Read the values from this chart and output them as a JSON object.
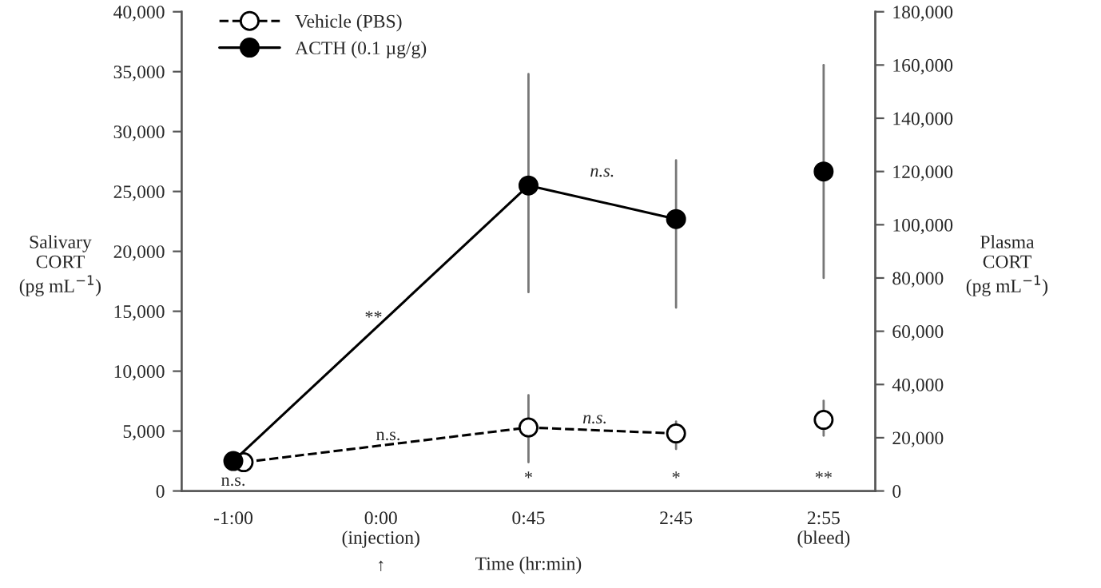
{
  "chart_data": {
    "type": "line",
    "xlabel": "Time (hr:min)",
    "ylabel": "Salivary\nCORT\n(pg mL$^{−1}$)",
    "y2label": "Plasma\nCORT\n(pg mL$^{−1}$)",
    "categories": [
      "-1:00",
      "0:00\n(injection)",
      "0:45",
      "2:45",
      "2:55\n(bleed)"
    ],
    "ylim": [
      0,
      40000
    ],
    "yticks": [
      {
        "value": 0,
        "label": "0"
      },
      {
        "value": 5000,
        "label": "5,000"
      },
      {
        "value": 10000,
        "label": "10,000"
      },
      {
        "value": 15000,
        "label": "15,000"
      },
      {
        "value": 20000,
        "label": "20,000"
      },
      {
        "value": 25000,
        "label": "25,000"
      },
      {
        "value": 30000,
        "label": "30,000"
      },
      {
        "value": 35000,
        "label": "35,000"
      },
      {
        "value": 40000,
        "label": "40,000"
      }
    ],
    "y2lim": [
      0,
      180000
    ],
    "y2ticks": [
      {
        "value": 0,
        "label": "0"
      },
      {
        "value": 20000,
        "label": "20,000"
      },
      {
        "value": 40000,
        "label": "40,000"
      },
      {
        "value": 60000,
        "label": "60,000"
      },
      {
        "value": 80000,
        "label": "80,000"
      },
      {
        "value": 100000,
        "label": "100,000"
      },
      {
        "value": 120000,
        "label": "120,000"
      },
      {
        "value": 140000,
        "label": "140,000"
      },
      {
        "value": 160000,
        "label": "160,000"
      },
      {
        "value": 180000,
        "label": "180,000"
      }
    ],
    "marker": "circle",
    "legend": "top left",
    "grid": false,
    "series": [
      {
        "name": "Vehicle (PBS)",
        "color": "#ffffff",
        "line_style": "dashed",
        "values": [
          2400,
          null,
          5300,
          4800,
          null
        ],
        "errors": [
          null,
          null,
          [
            2400,
            8000
          ],
          [
            3500,
            5800
          ],
          null
        ]
      },
      {
        "name": "ACTH (0.1 µg/g)",
        "color": "#000000",
        "line_style": "solid",
        "values": [
          2500,
          null,
          25500,
          22700,
          null
        ],
        "errors": [
          null,
          null,
          [
            16600,
            34800
          ],
          [
            15300,
            27600
          ],
          null
        ]
      },
      {
        "type": "scatter",
        "axis": "y2",
        "color": "#ffffff",
        "values": [
          null,
          null,
          null,
          null,
          26700
        ],
        "errors": [
          null,
          null,
          null,
          null,
          [
            20800,
            33900
          ]
        ]
      },
      {
        "type": "scatter",
        "axis": "y2",
        "color": "#000000",
        "values": [
          null,
          null,
          null,
          null,
          120000
        ],
        "errors": [
          null,
          null,
          null,
          null,
          [
            80000,
            160000
          ]
        ]
      }
    ],
    "annotations": [
      "n.s.",
      "**",
      "n.s.",
      "n.s.",
      "n.s.",
      "*",
      "*",
      "**",
      "↑"
    ]
  }
}
